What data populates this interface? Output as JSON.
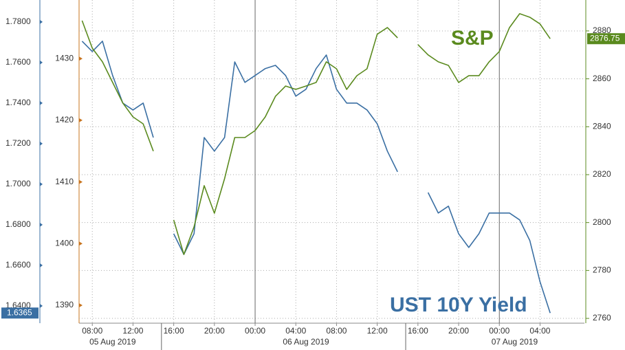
{
  "chart_data": {
    "type": "line",
    "categories": [
      null,
      "08:00",
      null,
      null,
      null,
      "12:00",
      null,
      null,
      null,
      "16:00",
      null,
      null,
      null,
      "20:00",
      null,
      null,
      null,
      "00:00",
      null,
      null,
      null,
      "04:00",
      null,
      null,
      null,
      "08:00",
      null,
      null,
      null,
      "12:00",
      null,
      null,
      null,
      "16:00",
      null,
      null,
      null,
      "20:00",
      null,
      null,
      null,
      "00:00",
      null,
      null,
      null,
      "04:00",
      null
    ],
    "date_labels": [
      "05 Aug 2019",
      "06 Aug 2019",
      "07 Aug 2019"
    ],
    "series": [
      {
        "name": "UST 10Y Yield",
        "color": "#3a6fa3",
        "axis": "y",
        "values": [
          1.7705,
          1.7654,
          1.7705,
          1.7536,
          1.74,
          1.7366,
          1.74,
          1.723,
          null,
          1.6756,
          1.6654,
          1.6756,
          1.723,
          1.7163,
          1.723,
          1.7603,
          1.7502,
          1.7536,
          1.757,
          1.7586,
          1.7536,
          1.7434,
          1.7468,
          1.757,
          1.7637,
          1.7468,
          1.74,
          1.74,
          1.7366,
          1.7298,
          1.7163,
          1.7061,
          null,
          null,
          1.6959,
          1.6858,
          1.6892,
          1.6756,
          1.6688,
          1.6756,
          1.6858,
          1.6858,
          1.6858,
          1.6824,
          1.6722,
          1.6519,
          1.6365
        ]
      },
      {
        "name": "S&P",
        "color": "#5a8a1e",
        "axis": "y2",
        "values": [
          2884.3,
          2872.8,
          2867.1,
          2858.5,
          2849.9,
          2844.1,
          2841.2,
          2829.8,
          null,
          2801.1,
          2786.7,
          2798.2,
          2815.4,
          2803.9,
          2818.3,
          2835.5,
          2835.5,
          2838.4,
          2844.1,
          2852.7,
          2857.0,
          2855.6,
          2857.0,
          2858.5,
          2867.1,
          2864.2,
          2855.6,
          2861.3,
          2864.2,
          2878.6,
          2881.4,
          2877.1,
          null,
          2874.3,
          2870.0,
          2867.1,
          2865.6,
          2858.5,
          2861.3,
          2861.3,
          2867.1,
          2871.4,
          2881.4,
          2887.2,
          2885.7,
          2882.9,
          2876.75
        ]
      }
    ],
    "ylim": [
      1.6315,
      1.7908
    ],
    "yticks": [
      {
        "value": 1.64,
        "label": "1.6400"
      },
      {
        "value": 1.66,
        "label": "1.6600"
      },
      {
        "value": 1.68,
        "label": "1.6800"
      },
      {
        "value": 1.7,
        "label": "1.7000"
      },
      {
        "value": 1.72,
        "label": "1.7200"
      },
      {
        "value": 1.74,
        "label": "1.7400"
      },
      {
        "value": 1.76,
        "label": "1.7600"
      },
      {
        "value": 1.78,
        "label": "1.7800"
      }
    ],
    "y3lim": [
      1387.1,
      1439.5
    ],
    "y3ticks": [
      1390,
      1400,
      1410,
      1420,
      1430
    ],
    "y3color": "#c8741e",
    "y2lim": [
      2758,
      2892.9
    ],
    "y2ticks": [
      2760,
      2780,
      2800,
      2820,
      2840,
      2860,
      2880
    ],
    "grid": true
  }
}
